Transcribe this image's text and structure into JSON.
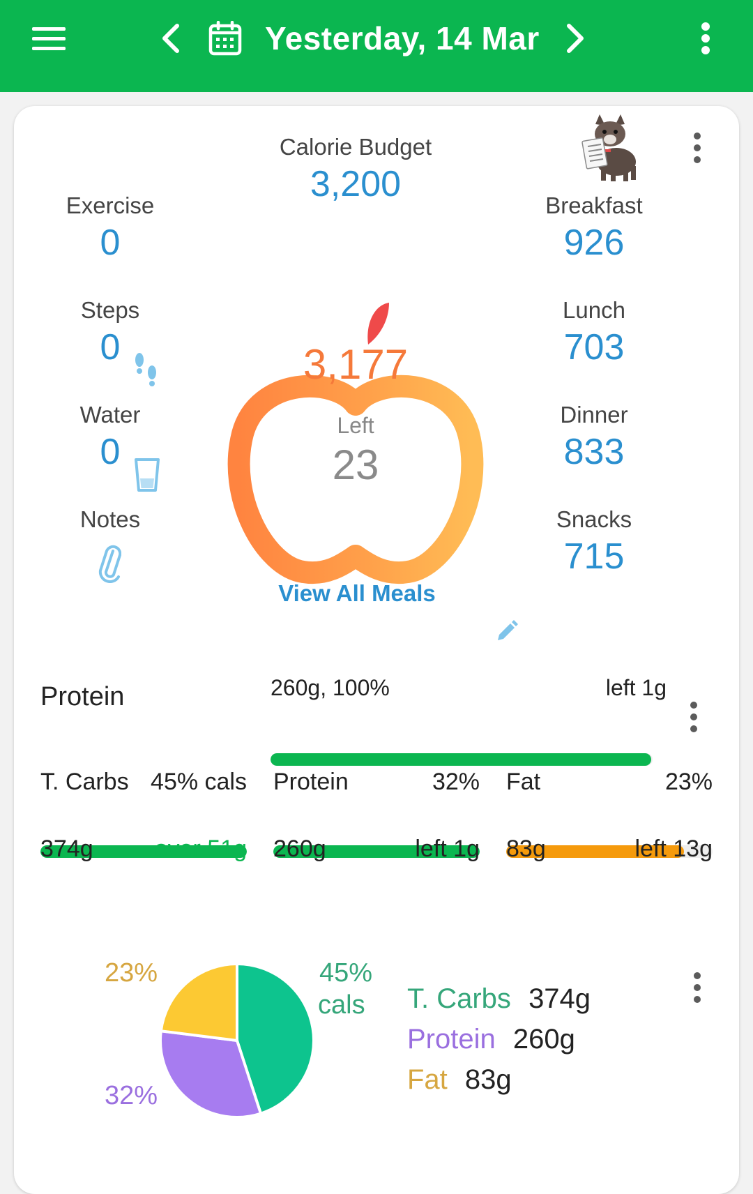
{
  "header": {
    "date_title": "Yesterday, 14 Mar",
    "icons": [
      "menu-icon",
      "chevron-left-icon",
      "calendar-icon",
      "chevron-right-icon",
      "more-vert-icon"
    ]
  },
  "summary": {
    "budget_label": "Calorie Budget",
    "budget_value": "3,200",
    "consumed": "3,177",
    "left_label": "Left",
    "left_value": "23",
    "view_all_label": "View All Meals",
    "left_stats": [
      {
        "label": "Exercise",
        "value": "0"
      },
      {
        "label": "Steps",
        "value": "0"
      },
      {
        "label": "Water",
        "value": "0"
      },
      {
        "label": "Notes",
        "value": ""
      }
    ],
    "meals": [
      {
        "label": "Breakfast",
        "value": "926"
      },
      {
        "label": "Lunch",
        "value": "703"
      },
      {
        "label": "Dinner",
        "value": "833"
      },
      {
        "label": "Snacks",
        "value": "715"
      }
    ]
  },
  "protein_goal": {
    "label": "Protein",
    "amount_pct": "260g, 100%",
    "remaining": "left 1g",
    "progress": 0.996
  },
  "macros": [
    {
      "name": "T. Carbs",
      "pct": "45% cals",
      "grams": "374g",
      "status": "over 51g",
      "progress": 1.0,
      "color": "#0bb650",
      "status_color": "#0bb650"
    },
    {
      "name": "Protein",
      "pct": "32%",
      "grams": "260g",
      "status": "left 1g",
      "progress": 1.0,
      "color": "#0bb650",
      "status_color": "#222222"
    },
    {
      "name": "Fat",
      "pct": "23%",
      "grams": "83g",
      "status": "left 13g",
      "progress": 0.86,
      "color": "#f59a0c",
      "status_color": "#222222"
    }
  ],
  "pie": {
    "slices": [
      {
        "name": "T. Carbs",
        "percent": 45,
        "color": "#0dc48e"
      },
      {
        "name": "Protein",
        "percent": 32,
        "color": "#a77cf0"
      },
      {
        "name": "Fat",
        "percent": 23,
        "color": "#fcc933"
      }
    ],
    "labels": {
      "carbs_pct": "45%",
      "carbs_unit": "cals",
      "protein_pct": "32%",
      "fat_pct": "23%"
    },
    "legend": [
      {
        "name": "T. Carbs",
        "value": "374g",
        "color": "#35a67a"
      },
      {
        "name": "Protein",
        "value": "260g",
        "color": "#9a6fdf"
      },
      {
        "name": "Fat",
        "value": "83g",
        "color": "#d6a640"
      }
    ]
  },
  "colors": {
    "brand": "#0bb650",
    "accent_blue": "#2a8fcf",
    "orange": "#f5793a"
  }
}
